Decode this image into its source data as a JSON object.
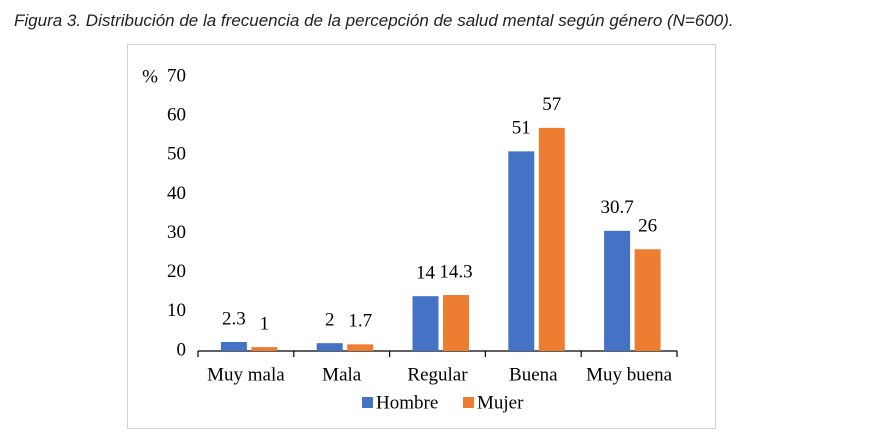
{
  "chart_data": {
    "type": "bar",
    "title": "Figura 3. Distribución de la frecuencia de la percepción de salud mental según género (N=600).",
    "ylabel": "%",
    "categories": [
      "Muy mala",
      "Mala",
      "Regular",
      "Buena",
      "Muy buena"
    ],
    "series": [
      {
        "name": "Hombre",
        "color": "#4472c4",
        "values": [
          2.3,
          2,
          14,
          51,
          30.7
        ]
      },
      {
        "name": "Mujer",
        "color": "#ed7d31",
        "values": [
          1,
          1.7,
          14.3,
          57,
          26
        ]
      }
    ],
    "ylim": [
      0,
      70
    ],
    "yticks": [
      0,
      10,
      20,
      30,
      40,
      50,
      60,
      70
    ],
    "legend": "bottom"
  }
}
